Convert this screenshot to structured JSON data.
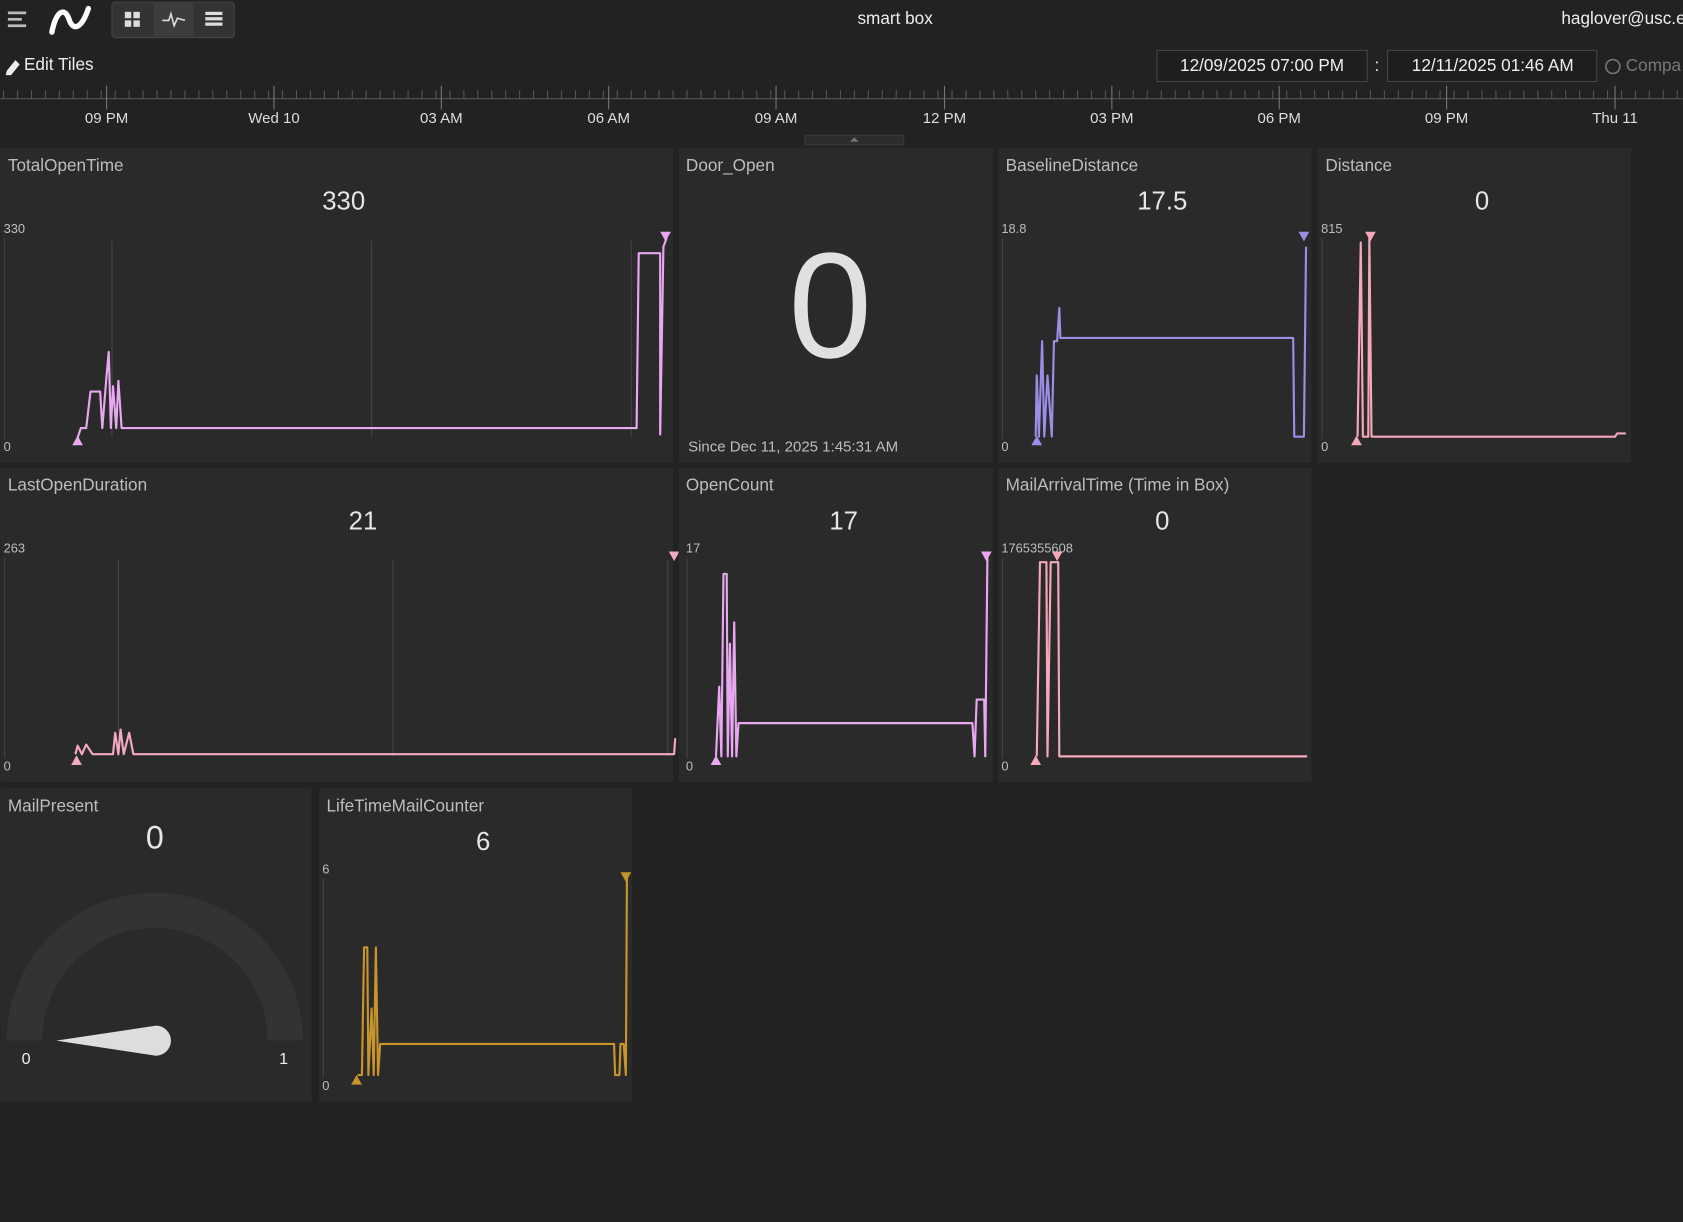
{
  "header": {
    "title": "smart box",
    "user": "haglover@usc.e",
    "edit": "Edit Tiles",
    "start": "12/09/2025 07:00 PM",
    "separator": ":",
    "end": "12/11/2025 01:46 AM",
    "compare": "Compa"
  },
  "timeline": {
    "labels": [
      "09 PM",
      "Wed 10",
      "03 AM",
      "06 AM",
      "09 AM",
      "12 PM",
      "03 PM",
      "06 PM",
      "09 PM",
      "Thu 11"
    ]
  },
  "tiles": [
    {
      "title": "TotalOpenTime",
      "value": "330",
      "max": "330",
      "min": "0"
    },
    {
      "title": "Door_Open",
      "value": "0",
      "note": "Since Dec 11, 2025 1:45:31 AM"
    },
    {
      "title": "BaselineDistance",
      "value": "17.5",
      "max": "18.8",
      "min": "0"
    },
    {
      "title": "Distance",
      "value": "0",
      "max": "815",
      "min": "0"
    },
    {
      "title": "LastOpenDuration",
      "value": "21",
      "max": "263",
      "min": "0"
    },
    {
      "title": "OpenCount",
      "value": "17",
      "max": "17",
      "min": "0"
    },
    {
      "title": "MailArrivalTime (Time in Box)",
      "value": "0",
      "max": "1765355608",
      "min": "0"
    },
    {
      "title": "MailPresent",
      "value": "0",
      "min": "0",
      "max": "1"
    },
    {
      "title": "LifeTimeMailCounter",
      "value": "6",
      "max": "6",
      "min": "0"
    }
  ]
}
